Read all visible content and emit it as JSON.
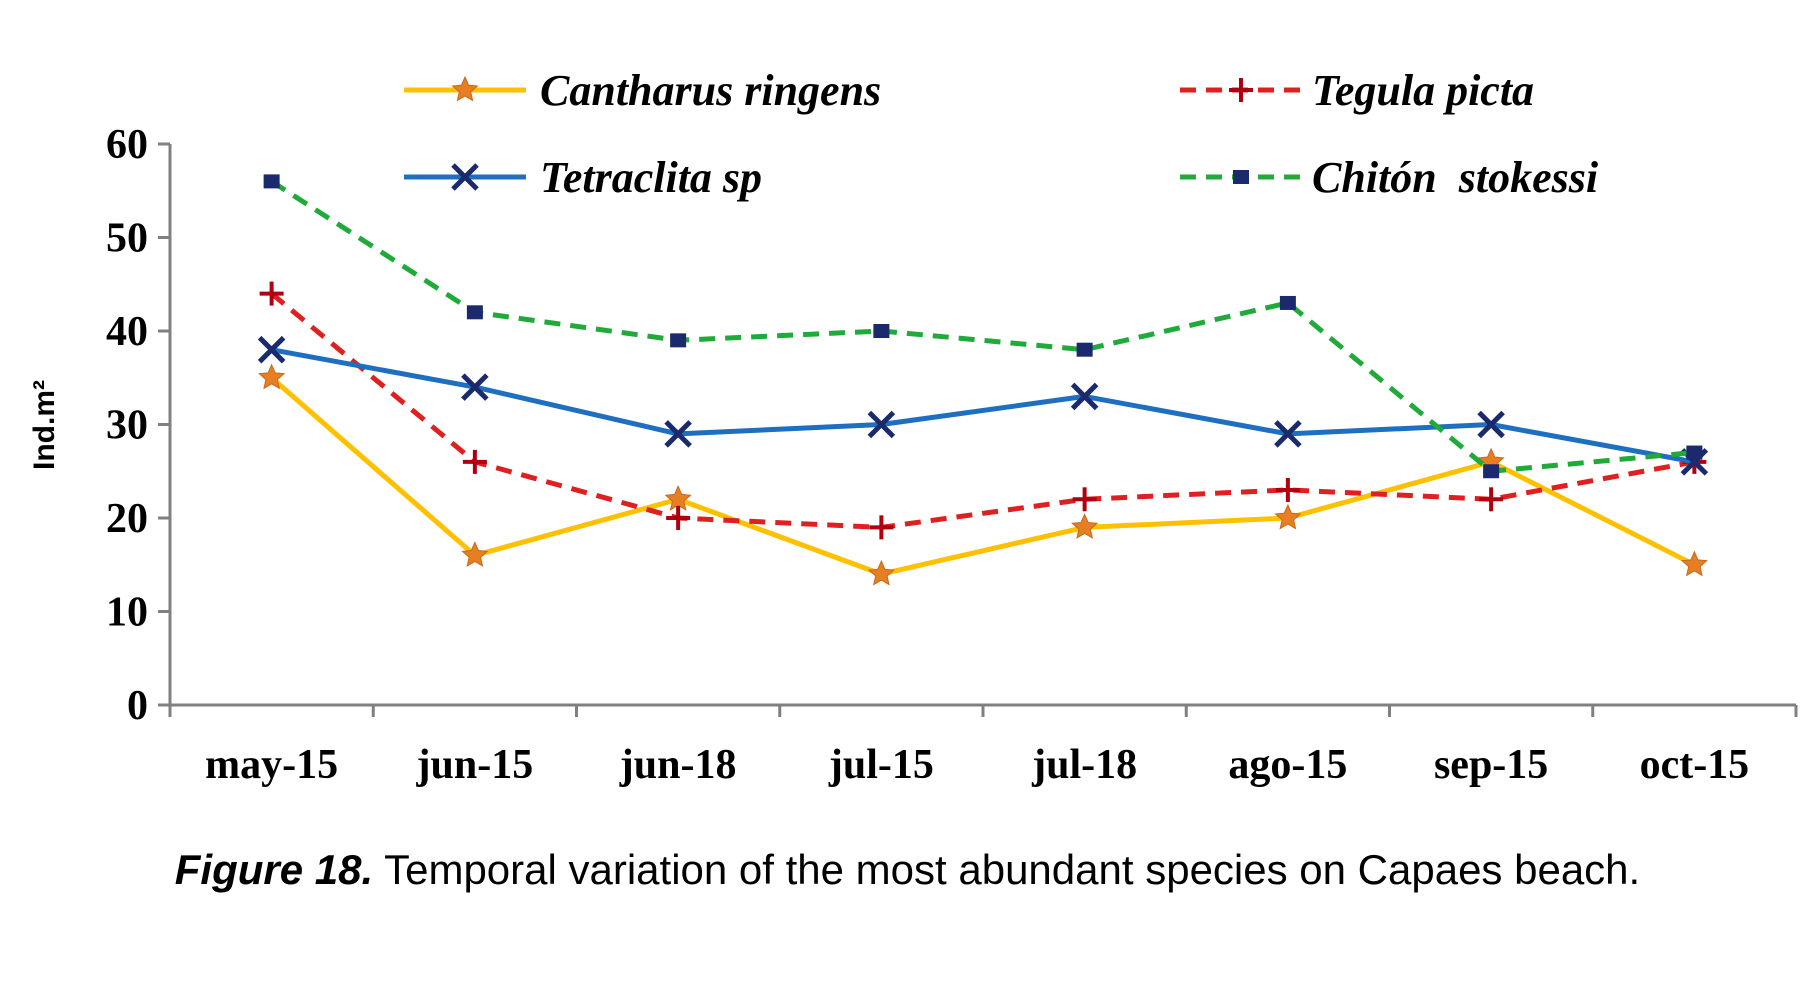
{
  "chart_data": {
    "type": "line",
    "categories": [
      "may-15",
      "jun-15",
      "jun-18",
      "jul-15",
      "jul-18",
      "ago-15",
      "sep-15",
      "oct-15"
    ],
    "series": [
      {
        "name": "Cantharus ringens",
        "color": "#FFC000",
        "dashed": false,
        "marker": "star",
        "values": [
          35,
          16,
          22,
          14,
          19,
          20,
          26,
          15
        ]
      },
      {
        "name": "Tegula picta",
        "color": "#E02020",
        "dashed": true,
        "marker": "plus",
        "values": [
          44,
          26,
          20,
          19,
          22,
          23,
          22,
          26
        ]
      },
      {
        "name": "Tetraclita sp",
        "color": "#1F6FC0",
        "dashed": false,
        "marker": "x",
        "values": [
          38,
          34,
          29,
          30,
          33,
          29,
          30,
          26
        ]
      },
      {
        "name": "Chitón  stokessi",
        "color": "#1FAA3A",
        "dashed": true,
        "marker": "square",
        "values": [
          56,
          42,
          39,
          40,
          38,
          43,
          25,
          27
        ]
      }
    ],
    "ylabel": "Ind.m²",
    "xlabel": "",
    "ylim": [
      0,
      60
    ],
    "yticks": [
      "0",
      "10",
      "20",
      "30",
      "40",
      "50",
      "60"
    ],
    "legend": "top"
  },
  "caption": {
    "label": "Figure 18.",
    "text": " Temporal variation of the most abundant species on Capaes beach."
  }
}
